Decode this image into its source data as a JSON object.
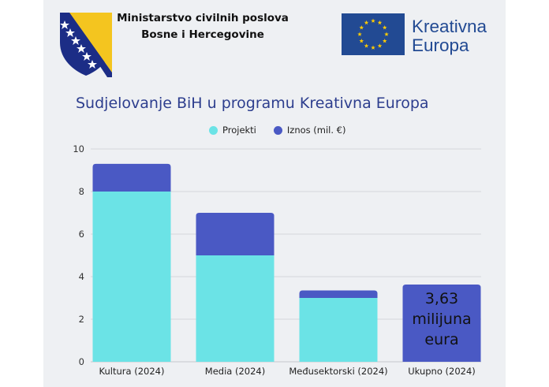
{
  "header": {
    "ministry_line1": "Ministarstvo civilnih poslova",
    "ministry_line2": "Bosne i Hercegovine",
    "program_logo_line1": "Kreativna",
    "program_logo_line2": "Europa"
  },
  "colors": {
    "projekti": "#6be3e6",
    "iznos": "#4a59c4",
    "title": "#2d3e8e",
    "grid": "#d4d6db",
    "eu_blue": "#224a93",
    "eu_star": "#ffcc00",
    "bih_blue": "#1c2d86",
    "bih_yellow": "#f4c51f"
  },
  "icons": [
    "bih-coat-of-arms-icon",
    "eu-flag-icon"
  ],
  "chart_data": {
    "type": "bar",
    "stacked": true,
    "title": "Sudjelovanje BiH u programu Kreativna Europa",
    "categories": [
      "Kultura (2024)",
      "Media (2024)",
      "Međusektorski (2024)",
      "Ukupno (2024)"
    ],
    "series": [
      {
        "name": "Projekti",
        "values": [
          8,
          5,
          3,
          0
        ]
      },
      {
        "name": "Iznos (mil. €)",
        "values": [
          1.3,
          2.0,
          0.35,
          3.63
        ]
      }
    ],
    "yticks": [
      "0",
      "2",
      "4",
      "6",
      "8",
      "10"
    ],
    "ylim": [
      0,
      10
    ],
    "grid": true,
    "legend_position": "top-center",
    "total_annotation": [
      "3,63",
      "milijuna",
      "eura"
    ]
  }
}
